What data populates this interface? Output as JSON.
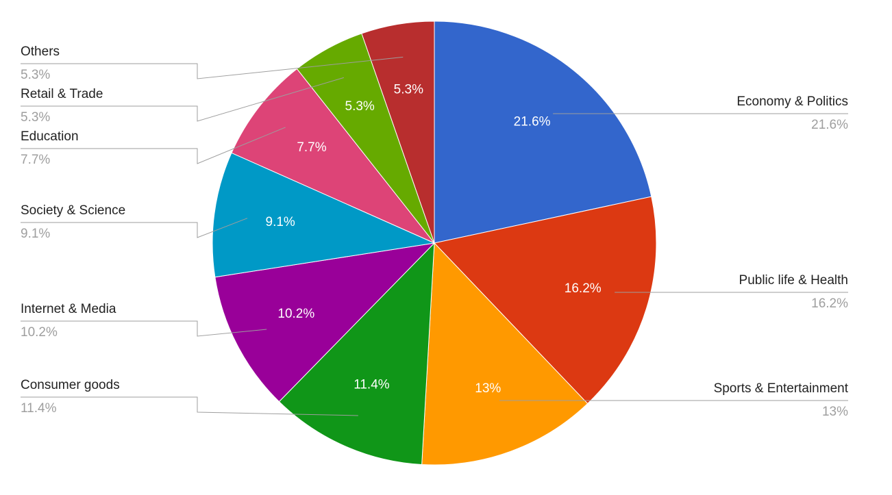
{
  "chart_data": {
    "type": "pie",
    "categories": [
      "Economy & Politics",
      "Public life & Health",
      "Sports & Entertainment",
      "Consumer goods",
      "Internet & Media",
      "Society & Science",
      "Education",
      "Retail & Trade",
      "Others"
    ],
    "values": [
      21.6,
      16.2,
      13,
      11.4,
      10.2,
      9.1,
      7.7,
      5.3,
      5.3
    ],
    "value_labels": [
      "21.6%",
      "16.2%",
      "13%",
      "11.4%",
      "10.2%",
      "9.1%",
      "7.7%",
      "5.3%",
      "5.3%"
    ],
    "colors": [
      "#3366cc",
      "#dc3912",
      "#ff9900",
      "#109618",
      "#990099",
      "#0099c6",
      "#dd4477",
      "#66aa00",
      "#b82e2e"
    ]
  }
}
